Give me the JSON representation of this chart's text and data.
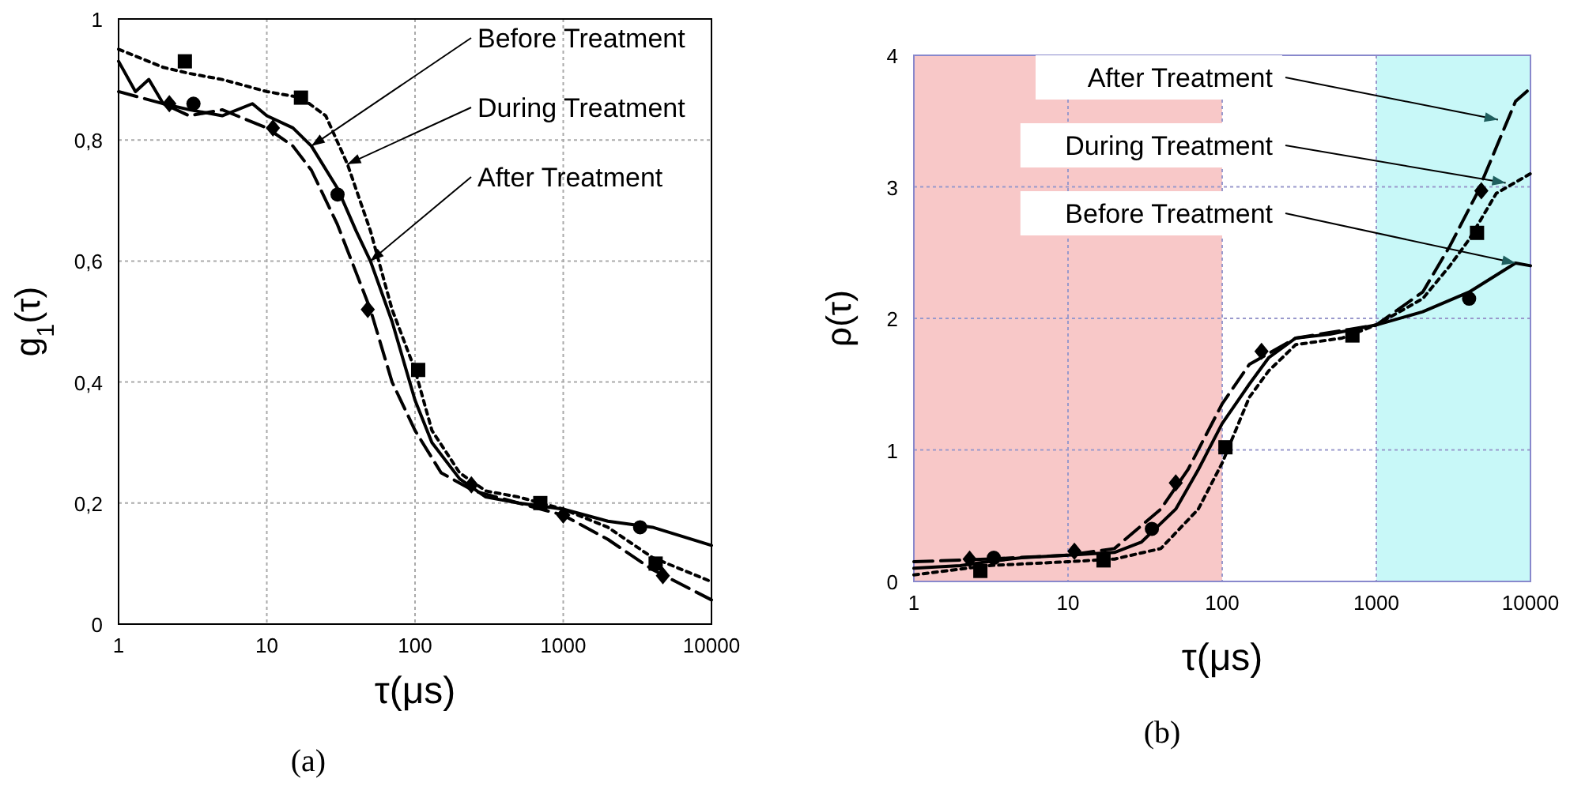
{
  "chart_data": [
    {
      "type": "line",
      "xlabel": "τ(μs)",
      "ylabel": "g$_{1}$(τ)",
      "log": "x",
      "grid": true,
      "xlim": [
        1,
        10000
      ],
      "xticks": [
        1,
        10,
        100,
        1000,
        10000
      ],
      "ylim": [
        0,
        1
      ],
      "yticks": [
        0,
        {
          "value": 0.2,
          "label": "0,2"
        },
        {
          "value": 0.4,
          "label": "0,4"
        },
        {
          "value": 0.6,
          "label": "0,6"
        },
        {
          "value": 0.8,
          "label": "0,8"
        },
        1
      ],
      "annotations": [
        {
          "text": "Before Treatment",
          "x": 20,
          "y": 0.79
        },
        {
          "text": "During Treatment",
          "x": 35,
          "y": 0.76
        },
        {
          "text": "After Treatment",
          "x": 50,
          "y": 0.6
        },
        "(a)"
      ],
      "series": [
        {
          "type": "line",
          "line_style": "solid",
          "color": "#000000",
          "x": [
            1,
            1.3,
            1.6,
            2,
            3,
            5,
            8,
            10,
            15,
            20,
            30,
            40,
            50,
            70,
            100,
            130,
            200,
            300,
            500,
            1000,
            2000,
            4000,
            10000
          ],
          "values": [
            0.93,
            0.88,
            0.9,
            0.86,
            0.85,
            0.84,
            0.86,
            0.84,
            0.82,
            0.79,
            0.72,
            0.65,
            0.6,
            0.5,
            0.37,
            0.3,
            0.24,
            0.21,
            0.2,
            0.19,
            0.17,
            0.16,
            0.13
          ]
        },
        {
          "type": "line",
          "line_style": "dotted",
          "color": "#000000",
          "x": [
            1,
            2,
            3,
            5,
            10,
            17,
            25,
            35,
            50,
            70,
            100,
            130,
            200,
            300,
            500,
            1000,
            2000,
            4000,
            10000
          ],
          "values": [
            0.95,
            0.92,
            0.91,
            0.9,
            0.88,
            0.87,
            0.84,
            0.76,
            0.65,
            0.52,
            0.42,
            0.32,
            0.25,
            0.22,
            0.21,
            0.19,
            0.16,
            0.11,
            0.07
          ]
        },
        {
          "type": "line",
          "line_style": "dashed",
          "color": "#000000",
          "x": [
            1,
            2,
            3,
            5,
            10,
            15,
            20,
            30,
            50,
            70,
            100,
            150,
            250,
            500,
            1000,
            2000,
            4000,
            10000
          ],
          "values": [
            0.88,
            0.86,
            0.84,
            0.85,
            0.82,
            0.79,
            0.75,
            0.66,
            0.52,
            0.4,
            0.32,
            0.25,
            0.22,
            0.2,
            0.18,
            0.14,
            0.09,
            0.04
          ]
        },
        {
          "type": "scatter",
          "marker": "circle",
          "color": "#000000",
          "x": [
            3.2,
            30,
            3300
          ],
          "values": [
            0.86,
            0.71,
            0.16
          ]
        },
        {
          "type": "scatter",
          "marker": "square",
          "color": "#000000",
          "x": [
            2.8,
            17,
            105,
            700,
            4200
          ],
          "values": [
            0.93,
            0.87,
            0.42,
            0.2,
            0.1
          ]
        },
        {
          "type": "scatter",
          "marker": "diamond",
          "color": "#000000",
          "x": [
            2.2,
            11,
            48,
            240,
            1000,
            4700
          ],
          "values": [
            0.86,
            0.82,
            0.52,
            0.23,
            0.18,
            0.08
          ]
        }
      ]
    },
    {
      "type": "line",
      "xlabel": "τ(μs)",
      "ylabel": "ρ(τ)",
      "log": "x",
      "grid": true,
      "xlim": [
        1,
        10000
      ],
      "xticks": [
        1,
        10,
        100,
        1000,
        10000
      ],
      "ylim": [
        0,
        4
      ],
      "yticks": [
        0,
        1,
        2,
        3,
        4
      ],
      "bands": [
        {
          "axis": "x",
          "from": 1,
          "to": 100,
          "color": "#f8c8c8"
        },
        {
          "axis": "x",
          "from": 1000,
          "to": 10000,
          "color": "#c8f8f8"
        }
      ],
      "annotations": [
        {
          "text": "After Treatment",
          "x": 6150,
          "y": 3.51
        },
        {
          "text": "During Treatment",
          "x": 6900,
          "y": 3.03
        },
        {
          "text": "Before Treatment",
          "x": 8000,
          "y": 2.42
        },
        "(b)"
      ],
      "series": [
        {
          "type": "line",
          "line_style": "solid",
          "color": "#000000",
          "x": [
            1,
            2,
            3,
            5,
            10,
            20,
            30,
            50,
            70,
            100,
            150,
            200,
            300,
            500,
            1000,
            2000,
            4000,
            8000,
            10000
          ],
          "values": [
            0.1,
            0.12,
            0.15,
            0.18,
            0.2,
            0.22,
            0.3,
            0.55,
            0.85,
            1.2,
            1.5,
            1.7,
            1.85,
            1.88,
            1.95,
            2.05,
            2.2,
            2.42,
            2.4
          ]
        },
        {
          "type": "line",
          "line_style": "dotted",
          "color": "#000000",
          "x": [
            1,
            3,
            10,
            20,
            40,
            70,
            100,
            150,
            200,
            300,
            600,
            1000,
            2000,
            3000,
            4000,
            6000,
            10000
          ],
          "values": [
            0.05,
            0.12,
            0.15,
            0.17,
            0.25,
            0.55,
            0.9,
            1.4,
            1.6,
            1.8,
            1.85,
            1.95,
            2.15,
            2.4,
            2.6,
            2.95,
            3.1
          ]
        },
        {
          "type": "line",
          "line_style": "dashed",
          "color": "#000000",
          "x": [
            1,
            3,
            10,
            20,
            40,
            60,
            100,
            150,
            300,
            1000,
            2000,
            3000,
            4500,
            6000,
            8000,
            10000
          ],
          "values": [
            0.15,
            0.17,
            0.2,
            0.25,
            0.55,
            0.85,
            1.35,
            1.65,
            1.85,
            1.95,
            2.2,
            2.55,
            2.95,
            3.3,
            3.65,
            3.75
          ]
        },
        {
          "type": "scatter",
          "marker": "circle",
          "color": "#000000",
          "x": [
            3.3,
            35,
            4000
          ],
          "values": [
            0.18,
            0.4,
            2.15
          ]
        },
        {
          "type": "scatter",
          "marker": "square",
          "color": "#000000",
          "x": [
            2.7,
            17,
            105,
            700,
            4500
          ],
          "values": [
            0.08,
            0.16,
            1.02,
            1.87,
            2.65
          ]
        },
        {
          "type": "scatter",
          "marker": "diamond",
          "color": "#000000",
          "x": [
            2.3,
            11,
            50,
            180,
            4800
          ],
          "values": [
            0.17,
            0.23,
            0.75,
            1.75,
            2.97
          ]
        }
      ]
    }
  ]
}
